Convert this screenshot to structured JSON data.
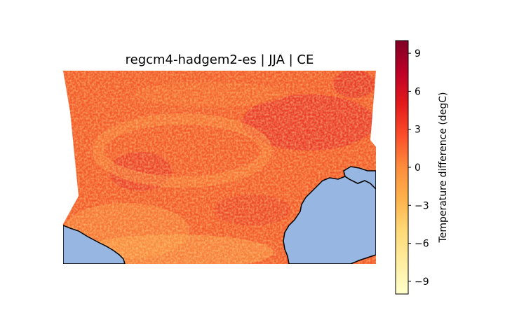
{
  "title": "regcm4-hadgem2-es | JJA | CE",
  "colorbar": {
    "label": "Temperature difference (degC)",
    "range": [
      -10,
      10
    ],
    "ticks": [
      {
        "value": -9,
        "label": "−9"
      },
      {
        "value": -6,
        "label": "−6"
      },
      {
        "value": -3,
        "label": "−3"
      },
      {
        "value": 0,
        "label": "0"
      },
      {
        "value": 3,
        "label": "3"
      },
      {
        "value": 6,
        "label": "6"
      },
      {
        "value": 9,
        "label": "9"
      }
    ],
    "colormap": "YlOrRd",
    "colors": [
      "#ffffcc",
      "#ffeda0",
      "#fed976",
      "#feb24c",
      "#fd8d3c",
      "#fc4e2a",
      "#e31a1c",
      "#bd0026",
      "#800026"
    ]
  },
  "map": {
    "field_description_color": "#f35a2a",
    "ocean_color": "#97b6e1",
    "coastline_color": "#000000"
  }
}
